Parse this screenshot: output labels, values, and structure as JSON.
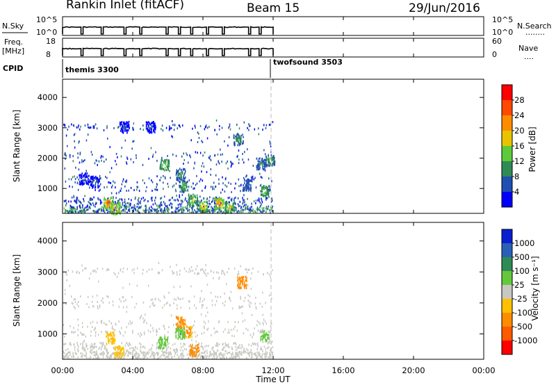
{
  "header": {
    "station": "Rankin Inlet (fitACF)",
    "beam": "Beam 15",
    "date": "29/Jun/2016"
  },
  "strips": {
    "nsky": {
      "left_label": "N.Sky",
      "left_ticks": [
        "10^5",
        "10^0"
      ],
      "right_ticks": [
        "10^5",
        "10^0"
      ],
      "right_label": "N.Search",
      "right_marker": "........"
    },
    "freq": {
      "left_label_1": "Freq.",
      "left_label_2": "[MHz]",
      "left_ticks": [
        "18",
        "8"
      ],
      "right_ticks": [
        "60",
        "0"
      ],
      "right_label": "Nave",
      "right_marker": "...."
    },
    "cpid": {
      "label": "CPID",
      "segments": [
        {
          "name": "themis 3300",
          "start": 0,
          "end": 12
        },
        {
          "name": "twofsound 3503",
          "start": 12,
          "end": 24
        }
      ]
    }
  },
  "axes": {
    "xlabel": "Time UT",
    "x_ticks": [
      "00:00",
      "04:00",
      "08:00",
      "12:00",
      "16:00",
      "20:00",
      "00:00"
    ],
    "ylabel": "Slant Range [km]",
    "y_ticks": [
      "1000",
      "2000",
      "3000",
      "4000"
    ]
  },
  "colorbars": {
    "power": {
      "label": "Power [dB]",
      "ticks": [
        "4",
        "8",
        "12",
        "16",
        "20",
        "24",
        "28"
      ],
      "colors": [
        "#0000ff",
        "#1f4fb0",
        "#2f8a55",
        "#5ccb3a",
        "#e8c400",
        "#ff8c00",
        "#ff4800",
        "#ff0000"
      ]
    },
    "velocity": {
      "label": "Velocity [m s⁻¹]",
      "ticks": [
        "1000",
        "500",
        "100",
        "25",
        "-25",
        "-100",
        "-500",
        "-1000"
      ],
      "colors": [
        "#0a1ecf",
        "#2a5fb7",
        "#2f8a55",
        "#64c83c",
        "#c8c8c3",
        "#ffc000",
        "#ff8c00",
        "#ff5a00",
        "#ff0000"
      ]
    }
  },
  "chart_data": [
    {
      "type": "heatmap",
      "title": "Power",
      "x_unit": "hours UT",
      "y_unit": "km",
      "xlim": [
        0,
        24
      ],
      "ylim": [
        180,
        4600
      ],
      "value_range": [
        0,
        32
      ],
      "blobs": [
        {
          "t": 2.6,
          "r": 500,
          "v": 28
        },
        {
          "t": 3.0,
          "r": 320,
          "v": 24
        },
        {
          "t": 1.8,
          "r": 1200,
          "v": 6
        },
        {
          "t": 1.2,
          "r": 1300,
          "v": 5
        },
        {
          "t": 6.9,
          "r": 1050,
          "v": 14
        },
        {
          "t": 6.7,
          "r": 1450,
          "v": 12
        },
        {
          "t": 5.8,
          "r": 1750,
          "v": 16
        },
        {
          "t": 7.4,
          "r": 600,
          "v": 18
        },
        {
          "t": 8.0,
          "r": 400,
          "v": 22
        },
        {
          "t": 8.9,
          "r": 500,
          "v": 26
        },
        {
          "t": 9.5,
          "r": 350,
          "v": 20
        },
        {
          "t": 10.0,
          "r": 2600,
          "v": 12
        },
        {
          "t": 11.3,
          "r": 1800,
          "v": 10
        },
        {
          "t": 11.8,
          "r": 1900,
          "v": 14
        },
        {
          "t": 11.5,
          "r": 900,
          "v": 16
        },
        {
          "t": 3.5,
          "r": 3000,
          "v": 5
        },
        {
          "t": 5.0,
          "r": 3000,
          "v": 5
        },
        {
          "t": 10.5,
          "r": 1100,
          "v": 8
        }
      ]
    },
    {
      "type": "heatmap",
      "title": "Velocity",
      "x_unit": "hours UT",
      "y_unit": "km m/s",
      "xlim": [
        0,
        24
      ],
      "ylim": [
        180,
        4600
      ],
      "value_range": [
        -1000,
        1000
      ],
      "blobs": [
        {
          "t": 6.7,
          "r": 1350,
          "v": -300
        },
        {
          "t": 7.1,
          "r": 1050,
          "v": -200
        },
        {
          "t": 7.5,
          "r": 450,
          "v": -300
        },
        {
          "t": 10.2,
          "r": 2650,
          "v": -500
        },
        {
          "t": 2.7,
          "r": 850,
          "v": -100
        },
        {
          "t": 5.7,
          "r": 700,
          "v": 80
        },
        {
          "t": 6.7,
          "r": 1000,
          "v": 120
        },
        {
          "t": 3.2,
          "r": 400,
          "v": -80
        },
        {
          "t": 11.5,
          "r": 900,
          "v": 60
        }
      ]
    }
  ]
}
